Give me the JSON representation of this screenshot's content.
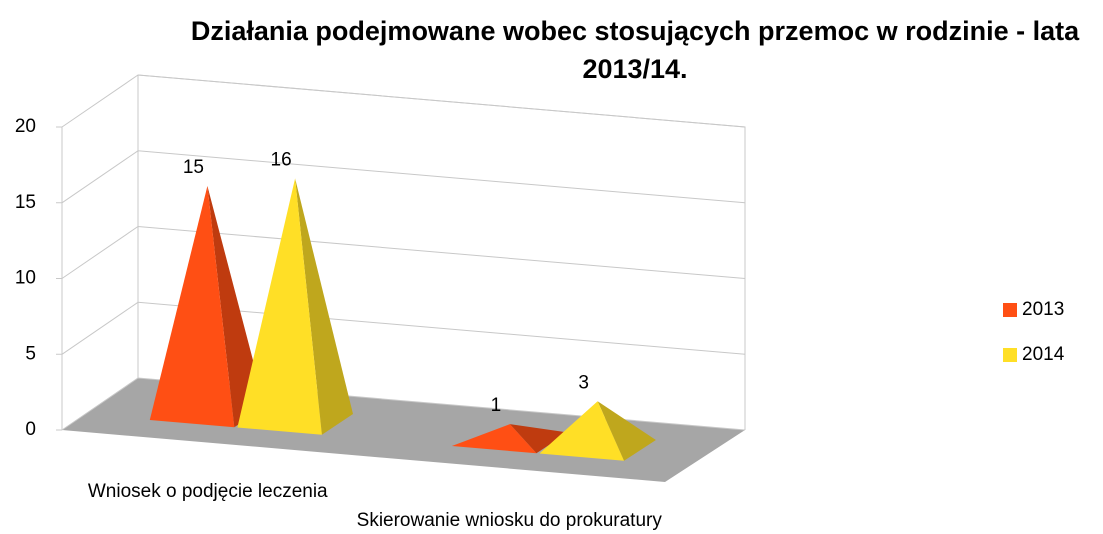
{
  "chart_data": {
    "type": "pyramid3d",
    "title": "Działania podejmowane wobec stosujących przemoc w rodzinie - lata 2013/14.",
    "categories": [
      "Wniosek o podjęcie leczenia",
      "Skierowanie wniosku do prokuratury"
    ],
    "series": [
      {
        "name": "2013",
        "color": "#ff4f14",
        "values": [
          15,
          1
        ]
      },
      {
        "name": "2014",
        "color": "#ffdf26",
        "values": [
          16,
          3
        ]
      }
    ],
    "ylim": [
      0,
      20
    ],
    "yticks": [
      0,
      5,
      10,
      15,
      20
    ],
    "grid": true,
    "legend": "right"
  }
}
